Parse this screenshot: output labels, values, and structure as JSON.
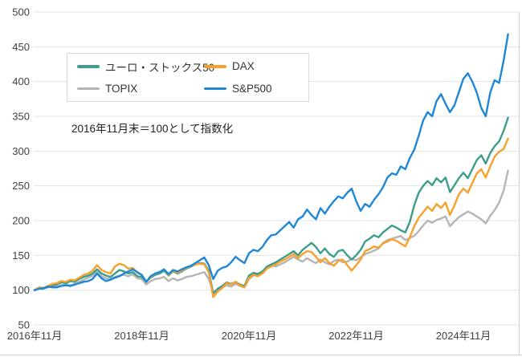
{
  "annotation": "2016年11月末＝100として指数化",
  "chart_data": {
    "type": "line",
    "title": "",
    "xlabel": "",
    "ylabel": "",
    "ylim": [
      50,
      500
    ],
    "grid": "horizontal",
    "legend_position": "top-left-box",
    "y_ticks": [
      50,
      100,
      150,
      200,
      250,
      300,
      350,
      400,
      450,
      500
    ],
    "x_tick_labels": [
      "2016年11月",
      "2018年11月",
      "2020年11月",
      "2022年11月",
      "2024年11月"
    ],
    "x_tick_month_offsets": [
      0,
      24,
      48,
      72,
      96
    ],
    "x_start": "2016-11",
    "x_frequency": "monthly",
    "series": [
      {
        "name": "ユーロ・ストックス50",
        "color": "#3C9D8D",
        "values": [
          100,
          103,
          102,
          105,
          107,
          108,
          111,
          110,
          113,
          112,
          116,
          119,
          121,
          124,
          130,
          124,
          121,
          119,
          124,
          129,
          127,
          124,
          126,
          120,
          119,
          112,
          118,
          122,
          124,
          128,
          121,
          127,
          124,
          127,
          131,
          134,
          137,
          139,
          138,
          128,
          95,
          102,
          106,
          111,
          109,
          112,
          108,
          106,
          121,
          125,
          123,
          127,
          134,
          137,
          140,
          144,
          148,
          152,
          156,
          150,
          158,
          163,
          168,
          162,
          153,
          160,
          152,
          148,
          156,
          158,
          150,
          144,
          150,
          158,
          170,
          174,
          179,
          176,
          183,
          188,
          193,
          190,
          186,
          183,
          198,
          222,
          240,
          250,
          257,
          251,
          261,
          255,
          262,
          241,
          251,
          261,
          269,
          261,
          274,
          287,
          294,
          282,
          297,
          307,
          314,
          329,
          348
        ]
      },
      {
        "name": "DAX",
        "color": "#F7A12C",
        "values": [
          100,
          104,
          103,
          106,
          109,
          110,
          113,
          112,
          115,
          114,
          118,
          122,
          124,
          128,
          136,
          129,
          126,
          124,
          134,
          138,
          136,
          131,
          132,
          125,
          122,
          112,
          119,
          124,
          126,
          130,
          122,
          128,
          125,
          128,
          132,
          135,
          137,
          138,
          137,
          126,
          90,
          98,
          103,
          110,
          108,
          112,
          107,
          104,
          118,
          122,
          120,
          124,
          131,
          134,
          137,
          141,
          144,
          148,
          152,
          146,
          152,
          156,
          155,
          148,
          140,
          146,
          139,
          135,
          142,
          144,
          136,
          128,
          136,
          144,
          156,
          159,
          163,
          161,
          167,
          170,
          173,
          171,
          167,
          163,
          176,
          192,
          204,
          212,
          220,
          214,
          224,
          218,
          226,
          208,
          222,
          238,
          246,
          240,
          254,
          268,
          274,
          262,
          278,
          292,
          299,
          303,
          318
        ]
      },
      {
        "name": "TOPIX",
        "color": "#B5B5B5",
        "values": [
          100,
          102,
          102,
          104,
          105,
          105,
          107,
          108,
          107,
          109,
          112,
          115,
          118,
          121,
          126,
          120,
          117,
          116,
          119,
          121,
          122,
          120,
          123,
          117,
          116,
          108,
          113,
          116,
          117,
          119,
          113,
          117,
          114,
          116,
          119,
          120,
          122,
          124,
          126,
          116,
          97,
          101,
          104,
          107,
          105,
          109,
          106,
          104,
          116,
          121,
          124,
          126,
          131,
          136,
          134,
          137,
          140,
          144,
          148,
          144,
          141,
          146,
          142,
          139,
          144,
          140,
          137,
          142,
          144,
          140,
          141,
          145,
          143,
          147,
          152,
          154,
          157,
          160,
          168,
          172,
          174,
          176,
          178,
          172,
          175,
          178,
          185,
          193,
          200,
          197,
          201,
          203,
          206,
          192,
          199,
          205,
          209,
          213,
          210,
          206,
          202,
          196,
          207,
          215,
          226,
          243,
          272
        ]
      },
      {
        "name": "S&P500",
        "color": "#1E87D8",
        "values": [
          100,
          102,
          103,
          105,
          104,
          104,
          106,
          107,
          106,
          108,
          110,
          112,
          113,
          116,
          124,
          117,
          113,
          115,
          118,
          120,
          124,
          127,
          130,
          126,
          122,
          112,
          120,
          124,
          126,
          130,
          123,
          129,
          127,
          130,
          133,
          135,
          139,
          143,
          147,
          136,
          116,
          128,
          132,
          134,
          140,
          148,
          143,
          139,
          153,
          158,
          156,
          162,
          172,
          179,
          180,
          186,
          192,
          198,
          190,
          202,
          206,
          216,
          208,
          202,
          218,
          210,
          220,
          228,
          235,
          232,
          240,
          246,
          228,
          214,
          224,
          220,
          230,
          238,
          248,
          262,
          268,
          266,
          278,
          274,
          290,
          302,
          322,
          344,
          356,
          350,
          372,
          382,
          368,
          356,
          366,
          385,
          404,
          412,
          400,
          384,
          362,
          350,
          384,
          402,
          398,
          430,
          468
        ]
      }
    ]
  }
}
